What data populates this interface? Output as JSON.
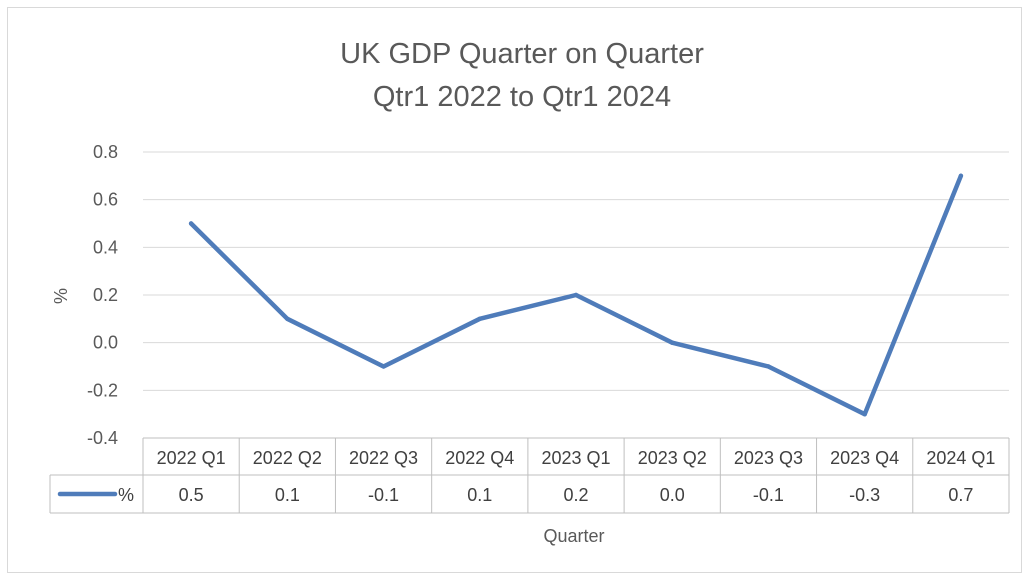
{
  "chart_data": {
    "type": "line",
    "title": "UK GDP Quarter on Quarter",
    "subtitle": "Qtr1 2022 to Qtr1 2024",
    "xlabel": "Quarter",
    "ylabel": "%",
    "ylim": [
      -0.4,
      0.8
    ],
    "yticks": [
      "0.8",
      "0.6",
      "0.4",
      "0.2",
      "0.0",
      "-0.2",
      "-0.4"
    ],
    "grid": true,
    "categories": [
      "2022 Q1",
      "2022 Q2",
      "2022 Q3",
      "2022 Q4",
      "2023 Q1",
      "2023 Q2",
      "2023 Q3",
      "2023 Q4",
      "2024 Q1"
    ],
    "series": [
      {
        "name": "%",
        "values": [
          0.5,
          0.1,
          -0.1,
          0.1,
          0.2,
          0.0,
          -0.1,
          -0.3,
          0.7
        ],
        "value_labels": [
          "0.5",
          "0.1",
          "-0.1",
          "0.1",
          "0.2",
          "0.0",
          "-0.1",
          "-0.3",
          "0.7"
        ],
        "color": "#4f7cba"
      }
    ],
    "data_table": true
  }
}
